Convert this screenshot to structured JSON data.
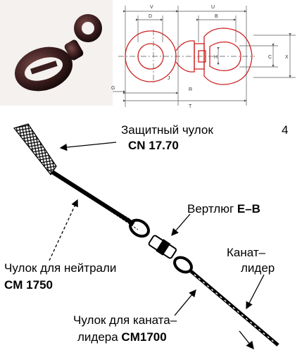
{
  "photo": {
    "alt_icon": "swivel-photo"
  },
  "drawing": {
    "dims": [
      "V",
      "U",
      "D",
      "B",
      "C",
      "X",
      "H",
      "J",
      "G",
      "R",
      "T"
    ]
  },
  "labels": {
    "figure_number": "4",
    "protective_sock_ru": "Защитный чулок",
    "protective_sock_code": "CN 17.70",
    "swivel_ru": "Вертлюг ",
    "swivel_code": "E–B",
    "rope_leader_line1": "Канат–",
    "rope_leader_line2": "лидер",
    "neutral_sock_ru": "Чулок для нейтрали",
    "neutral_sock_code": "CM 1750",
    "leader_sock_line1": "Чулок для каната–",
    "leader_sock_line2_ru": "лидера ",
    "leader_sock_code": "CM1700"
  },
  "colors": {
    "drawing_red": "#cc2222",
    "dim_gray": "#555555",
    "photo_metal": "#3a1d1d"
  }
}
